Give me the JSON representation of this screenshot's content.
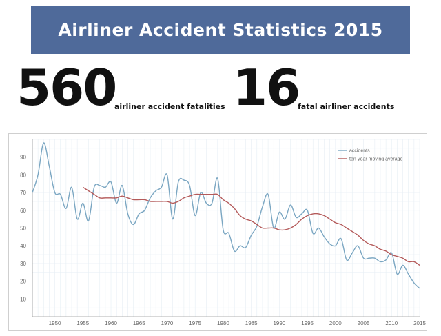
{
  "banner": {
    "title": "Airliner Accident Statistics 2015"
  },
  "stats": [
    {
      "number": "560",
      "label": "airliner accident fatalities"
    },
    {
      "number": "16",
      "label": "fatal airliner accidents"
    }
  ],
  "colors": {
    "banner": "#4f6a9a",
    "accidents": "#7aa6c2",
    "moving_average": "#b45a5a"
  },
  "chart_data": {
    "type": "line",
    "title": "",
    "xlabel": "",
    "ylabel": "",
    "xlim": [
      1946,
      2015
    ],
    "ylim": [
      0,
      100
    ],
    "x_ticks": [
      1950,
      1955,
      1960,
      1965,
      1970,
      1975,
      1980,
      1985,
      1990,
      1995,
      2000,
      2005,
      2010,
      2015
    ],
    "y_ticks": [
      10,
      20,
      30,
      40,
      50,
      60,
      70,
      80,
      90
    ],
    "grid": true,
    "legend_position": "top-right",
    "series": [
      {
        "name": "accidents",
        "x": [
          1946,
          1947,
          1948,
          1949,
          1950,
          1951,
          1952,
          1953,
          1954,
          1955,
          1956,
          1957,
          1958,
          1959,
          1960,
          1961,
          1962,
          1963,
          1964,
          1965,
          1966,
          1967,
          1968,
          1969,
          1970,
          1971,
          1972,
          1973,
          1974,
          1975,
          1976,
          1977,
          1978,
          1979,
          1980,
          1981,
          1982,
          1983,
          1984,
          1985,
          1986,
          1987,
          1988,
          1989,
          1990,
          1991,
          1992,
          1993,
          1994,
          1995,
          1996,
          1997,
          1998,
          1999,
          2000,
          2001,
          2002,
          2003,
          2004,
          2005,
          2006,
          2007,
          2008,
          2009,
          2010,
          2011,
          2012,
          2013,
          2014,
          2015
        ],
        "y": [
          70,
          80,
          98,
          85,
          70,
          69,
          61,
          73,
          55,
          64,
          54,
          73,
          74,
          73,
          76,
          64,
          74,
          58,
          52,
          58,
          60,
          67,
          71,
          73,
          80,
          55,
          76,
          77,
          74,
          57,
          70,
          64,
          64,
          78,
          49,
          47,
          37,
          40,
          39,
          46,
          51,
          62,
          69,
          50,
          59,
          55,
          63,
          56,
          58,
          60,
          47,
          50,
          45,
          41,
          40,
          44,
          32,
          36,
          40,
          33,
          33,
          33,
          31,
          32,
          36,
          24,
          29,
          24,
          19,
          16
        ]
      },
      {
        "name": "ten-year moving average",
        "x": [
          1955,
          1956,
          1957,
          1958,
          1959,
          1960,
          1961,
          1962,
          1963,
          1964,
          1965,
          1966,
          1967,
          1968,
          1969,
          1970,
          1971,
          1972,
          1973,
          1974,
          1975,
          1976,
          1977,
          1978,
          1979,
          1980,
          1981,
          1982,
          1983,
          1984,
          1985,
          1986,
          1987,
          1988,
          1989,
          1990,
          1991,
          1992,
          1993,
          1994,
          1995,
          1996,
          1997,
          1998,
          1999,
          2000,
          2001,
          2002,
          2003,
          2004,
          2005,
          2006,
          2007,
          2008,
          2009,
          2010,
          2011,
          2012,
          2013,
          2014,
          2015
        ],
        "y": [
          73,
          71,
          69,
          67,
          67,
          67,
          67,
          68,
          67,
          66,
          66,
          66,
          65,
          65,
          65,
          65,
          64,
          65,
          67,
          68,
          69,
          69,
          69,
          69,
          69,
          66,
          64,
          61,
          57,
          55,
          54,
          52,
          50,
          50,
          50,
          49,
          49,
          50,
          52,
          55,
          57,
          58,
          58,
          57,
          55,
          53,
          52,
          50,
          48,
          46,
          43,
          41,
          40,
          38,
          37,
          35,
          34,
          33,
          31,
          31,
          29
        ]
      }
    ]
  }
}
